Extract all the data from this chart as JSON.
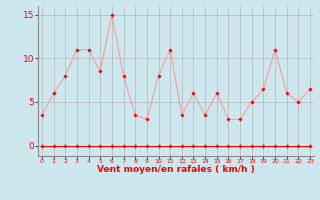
{
  "x": [
    0,
    1,
    2,
    3,
    4,
    5,
    6,
    7,
    8,
    9,
    10,
    11,
    12,
    13,
    14,
    15,
    16,
    17,
    18,
    19,
    20,
    21,
    22,
    23
  ],
  "y_main": [
    3.5,
    6.0,
    8.0,
    11.0,
    11.0,
    8.5,
    15.0,
    8.0,
    3.5,
    3.0,
    8.0,
    11.0,
    3.5,
    6.0,
    3.5,
    6.0,
    3.0,
    3.0,
    5.0,
    6.5,
    11.0,
    6.0,
    5.0,
    6.5
  ],
  "y_zero": [
    0,
    0,
    0,
    0,
    0,
    0,
    0,
    0,
    0,
    0,
    0,
    0,
    0,
    0,
    0,
    0,
    0,
    0,
    0,
    0,
    0,
    0,
    0,
    0
  ],
  "line_color": "#FF9999",
  "marker_color": "#FF0000",
  "zero_line_color": "#FF0000",
  "bg_color": "#CCE8EE",
  "grid_color": "#AAAAAA",
  "xlabel": "Vent moyen/en rafales ( km/h )",
  "xlabel_color": "#FF0000",
  "tick_color": "#FF0000",
  "ylim": [
    -1.2,
    16
  ],
  "yticks": [
    0,
    5,
    10,
    15
  ],
  "xlim": [
    -0.3,
    23.3
  ]
}
